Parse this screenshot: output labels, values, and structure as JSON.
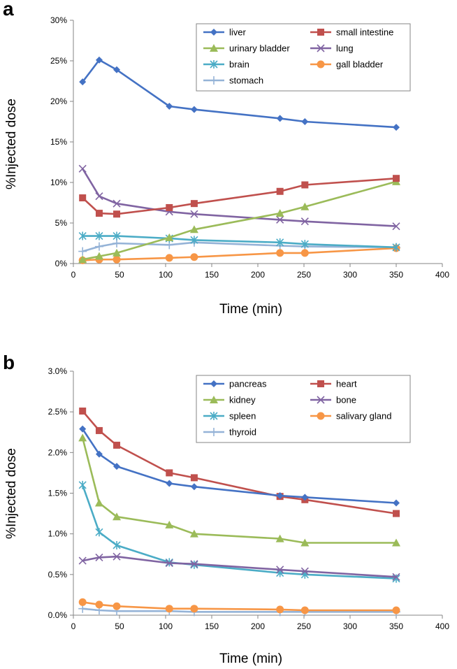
{
  "chart_data": [
    {
      "panel": "a",
      "type": "line",
      "xlabel": "Time (min)",
      "ylabel": "%Injected dose",
      "xlim": [
        0,
        400
      ],
      "ylim": [
        0,
        30
      ],
      "xticks": [
        0,
        50,
        100,
        150,
        200,
        250,
        300,
        350,
        400
      ],
      "yticks": [
        0,
        5,
        10,
        15,
        20,
        25,
        30
      ],
      "ytick_labels": [
        "0%",
        "5%",
        "10%",
        "15%",
        "20%",
        "25%",
        "30%"
      ],
      "grid": false,
      "legend_position": "top-right",
      "x": [
        10,
        28,
        47,
        104,
        131,
        224,
        251,
        350
      ],
      "series": [
        {
          "name": "liver",
          "color": "#4472C4",
          "marker": "diamond",
          "values": [
            22.4,
            25.1,
            23.9,
            19.4,
            19.0,
            17.9,
            17.5,
            16.8
          ]
        },
        {
          "name": "small intestine",
          "color": "#C0504D",
          "marker": "square",
          "values": [
            8.1,
            6.2,
            6.1,
            6.9,
            7.4,
            8.9,
            9.7,
            10.5
          ]
        },
        {
          "name": "urinary bladder",
          "color": "#9BBB59",
          "marker": "triangle",
          "values": [
            0.5,
            0.9,
            1.3,
            3.2,
            4.2,
            6.2,
            7.0,
            10.1
          ]
        },
        {
          "name": "lung",
          "color": "#8064A2",
          "marker": "x",
          "values": [
            11.7,
            8.3,
            7.4,
            6.4,
            6.1,
            5.4,
            5.2,
            4.6
          ]
        },
        {
          "name": "brain",
          "color": "#4BACC6",
          "marker": "star",
          "values": [
            3.4,
            3.4,
            3.4,
            3.1,
            2.9,
            2.6,
            2.4,
            2.0
          ]
        },
        {
          "name": "gall bladder",
          "color": "#F79646",
          "marker": "circle",
          "values": [
            0.4,
            0.5,
            0.5,
            0.7,
            0.8,
            1.3,
            1.3,
            1.9
          ]
        },
        {
          "name": "stomach",
          "color": "#95B3D7",
          "marker": "plus",
          "values": [
            1.5,
            2.1,
            2.5,
            2.3,
            2.6,
            2.2,
            2.1,
            2.0
          ]
        }
      ]
    },
    {
      "panel": "b",
      "type": "line",
      "xlabel": "Time (min)",
      "ylabel": "%Injected dose",
      "xlim": [
        0,
        400
      ],
      "ylim": [
        0,
        3.0
      ],
      "xticks": [
        0,
        50,
        100,
        150,
        200,
        250,
        300,
        350,
        400
      ],
      "yticks": [
        0,
        0.5,
        1.0,
        1.5,
        2.0,
        2.5,
        3.0
      ],
      "ytick_labels": [
        "0.0%",
        "0.5%",
        "1.0%",
        "1.5%",
        "2.0%",
        "2.5%",
        "3.0%"
      ],
      "grid": false,
      "legend_position": "top-right",
      "x": [
        10,
        28,
        47,
        104,
        131,
        224,
        251,
        350
      ],
      "series": [
        {
          "name": "pancreas",
          "color": "#4472C4",
          "marker": "diamond",
          "values": [
            2.29,
            1.98,
            1.83,
            1.62,
            1.58,
            1.47,
            1.45,
            1.38
          ]
        },
        {
          "name": "heart",
          "color": "#C0504D",
          "marker": "square",
          "values": [
            2.51,
            2.27,
            2.09,
            1.75,
            1.69,
            1.46,
            1.42,
            1.25
          ]
        },
        {
          "name": "kidney",
          "color": "#9BBB59",
          "marker": "triangle",
          "values": [
            2.18,
            1.38,
            1.21,
            1.11,
            1.0,
            0.94,
            0.89,
            0.89
          ]
        },
        {
          "name": "bone",
          "color": "#8064A2",
          "marker": "x",
          "values": [
            0.67,
            0.71,
            0.72,
            0.64,
            0.63,
            0.56,
            0.54,
            0.47
          ]
        },
        {
          "name": "spleen",
          "color": "#4BACC6",
          "marker": "star",
          "values": [
            1.6,
            1.02,
            0.86,
            0.65,
            0.62,
            0.52,
            0.5,
            0.45
          ]
        },
        {
          "name": "salivary gland",
          "color": "#F79646",
          "marker": "circle",
          "values": [
            0.16,
            0.13,
            0.11,
            0.08,
            0.08,
            0.07,
            0.06,
            0.06
          ]
        },
        {
          "name": "thyroid",
          "color": "#95B3D7",
          "marker": "plus",
          "values": [
            0.08,
            0.06,
            0.05,
            0.05,
            0.04,
            0.04,
            0.04,
            0.04
          ]
        }
      ]
    }
  ]
}
